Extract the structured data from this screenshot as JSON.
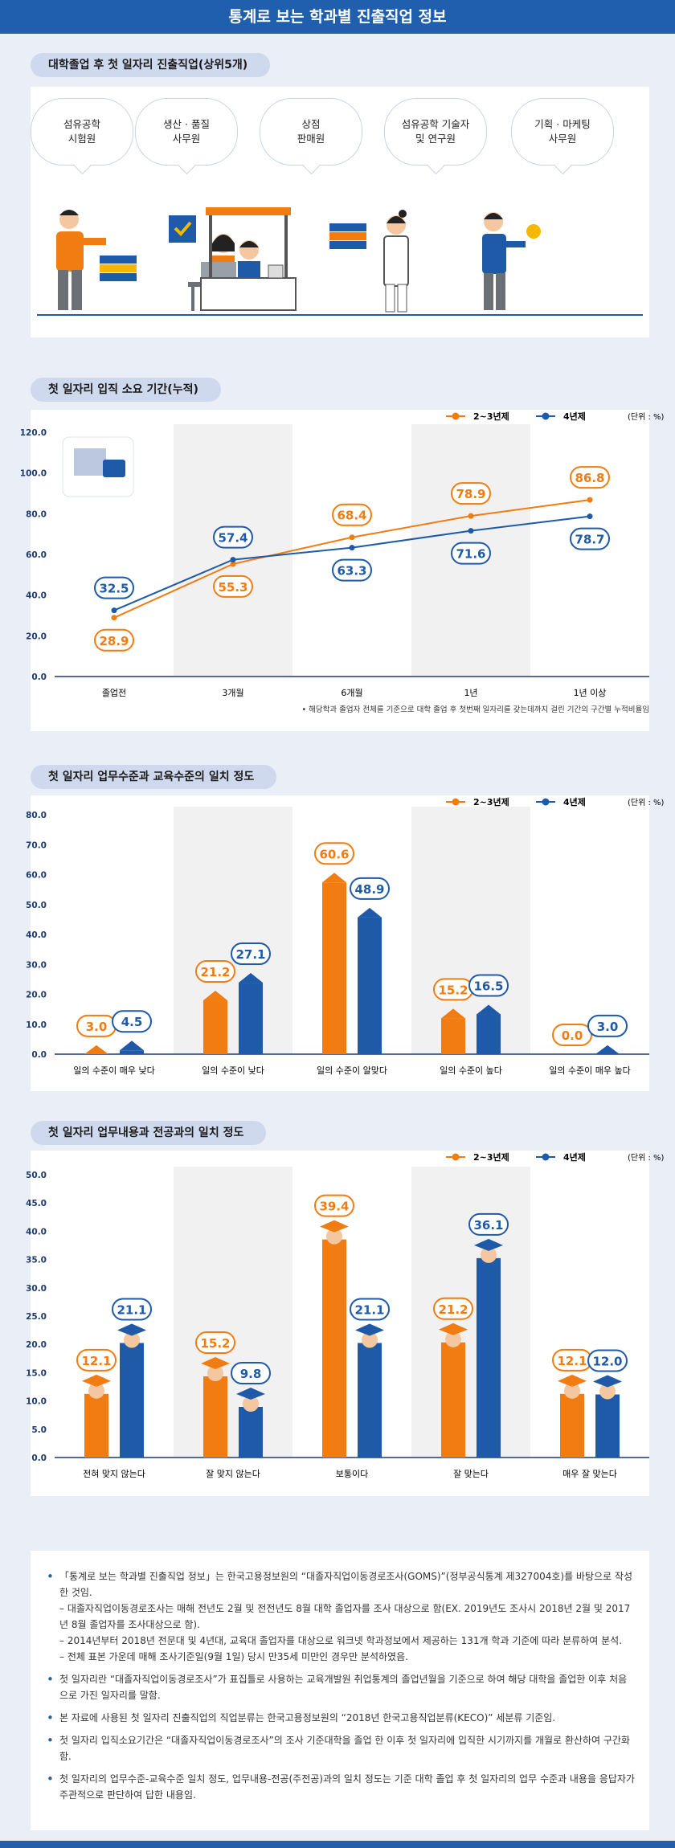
{
  "header": {
    "title": "통계로 보는 학과별 진출직업 정보"
  },
  "colors": {
    "orange": "#f07c12",
    "blue": "#1e5aa8",
    "navy": "#1f5fae"
  },
  "section1": {
    "title": "대학졸업 후 첫 일자리 진출직업(상위5개)",
    "jobs": [
      "섬유공학\n시험원",
      "생산 · 품질\n사무원",
      "상점\n판매원",
      "섬유공학 기술자\n및 연구원",
      "기획 · 마케팅\n사무원"
    ]
  },
  "section2": {
    "title": "첫 일자리 입직 소요 기간(누적)"
  },
  "section3": {
    "title": "첫 일자리 업무수준과 교육수준의 일치 정도"
  },
  "section4": {
    "title": "첫 일자리 업무내용과 전공과의 일치 정도"
  },
  "chart_data": [
    {
      "type": "line",
      "title": "첫 일자리 입직 소요 기간(누적)",
      "categories": [
        "졸업전",
        "3개월",
        "6개월",
        "1년",
        "1년 이상"
      ],
      "series": [
        {
          "name": "2~3년제",
          "values": [
            28.9,
            55.3,
            68.4,
            78.9,
            86.8
          ]
        },
        {
          "name": "4년제",
          "values": [
            32.5,
            57.4,
            63.3,
            71.6,
            78.7
          ]
        }
      ],
      "ylim": [
        0,
        120
      ],
      "yticks": [
        "0.0",
        "20.0",
        "40.0",
        "60.0",
        "80.0",
        "100.0",
        "120.0"
      ],
      "unit": "(단위 : %)",
      "footnote": "• 해당학과 졸업자 전체를 기준으로 대학 졸업 후 첫번째 일자리를 갖는데까지 걸린 기간의 구간별 누적비율임"
    },
    {
      "type": "bar",
      "title": "첫 일자리 업무수준과 교육수준의 일치 정도",
      "categories": [
        "일의 수준이 매우 낮다",
        "일의 수준이 낮다",
        "일의 수준이 알맞다",
        "일의 수준이 높다",
        "일의 수준이 매우 높다"
      ],
      "series": [
        {
          "name": "2~3년제",
          "values": [
            3.0,
            21.2,
            60.6,
            15.2,
            0.0
          ]
        },
        {
          "name": "4년제",
          "values": [
            4.5,
            27.1,
            48.9,
            16.5,
            3.0
          ]
        }
      ],
      "ylim": [
        0,
        80
      ],
      "yticks": [
        "0.0",
        "10.0",
        "20.0",
        "30.0",
        "40.0",
        "50.0",
        "60.0",
        "70.0",
        "80.0"
      ],
      "unit": "(단위 : %)"
    },
    {
      "type": "bar",
      "title": "첫 일자리 업무내용과 전공과의 일치 정도",
      "categories": [
        "전혀 맞지 않는다",
        "잘 맞지 않는다",
        "보통이다",
        "잘 맞는다",
        "매우 잘 맞는다"
      ],
      "series": [
        {
          "name": "2~3년제",
          "values": [
            12.1,
            15.2,
            39.4,
            21.2,
            12.1
          ]
        },
        {
          "name": "4년제",
          "values": [
            21.1,
            9.8,
            21.1,
            36.1,
            12.0
          ]
        }
      ],
      "ylim": [
        0,
        50
      ],
      "yticks": [
        "0.0",
        "5.0",
        "10.0",
        "15.0",
        "20.0",
        "25.0",
        "30.0",
        "35.0",
        "40.0",
        "45.0",
        "50.0"
      ],
      "unit": "(단위 : %)"
    }
  ],
  "notes": [
    {
      "text": "「통계로 보는 학과별 진출직업 정보」는 한국고용정보원의 “대졸자직업이동경로조사(GOMS)”(정부공식통계 제327004호)를 바탕으로 작성한 것임.",
      "subs": [
        "– 대졸자직업이동경로조사는 매해 전년도 2월 및 전전년도 8월 대학 졸업자를 조사 대상으로 함(EX. 2019년도 조사시 2018년 2월 및 2017년 8월 졸업자를 조사대상으로 함).",
        "– 2014년부터 2018년 전문대 및 4년대, 교육대 졸업자를 대상으로 워크넷 학과정보에서 제공하는 131개 학과 기준에 따라 분류하여 분석.",
        "– 전체 표본 가운데 매해 조사기준일(9월 1일) 당시 만35세 미만인 경우만 분석하였음."
      ]
    },
    {
      "text": "첫 일자리란 “대졸자직업이동경로조사”가 표집틀로 사용하는 교육개발원 취업통계의 졸업년월을 기준으로 하여 해당 대학을 졸업한 이후 처음으로 가진 일자리를 말함.",
      "subs": []
    },
    {
      "text": "본 자료에 사용된 첫 일자리 진출직업의 직업분류는 한국고용정보원의 “2018년 한국고용직업분류(KECO)” 세분류 기준임.",
      "subs": []
    },
    {
      "text": "첫 일자리 입직소요기간은 “대졸자직업이동경로조사”의 조사 기준대학을 졸업 한 이후 첫 일자리에 입직한 시기까지를 개월로 환산하여 구간화함.",
      "subs": []
    },
    {
      "text": "첫 일자리의 업무수준-교육수준 일치 정도, 업무내용-전공(주전공)과의 일치 정도는 기준 대학 졸업 후 첫 일자리의 업무 수준과 내용을 응답자가 주관적으로 판단하여 답한 내용임.",
      "subs": []
    }
  ]
}
